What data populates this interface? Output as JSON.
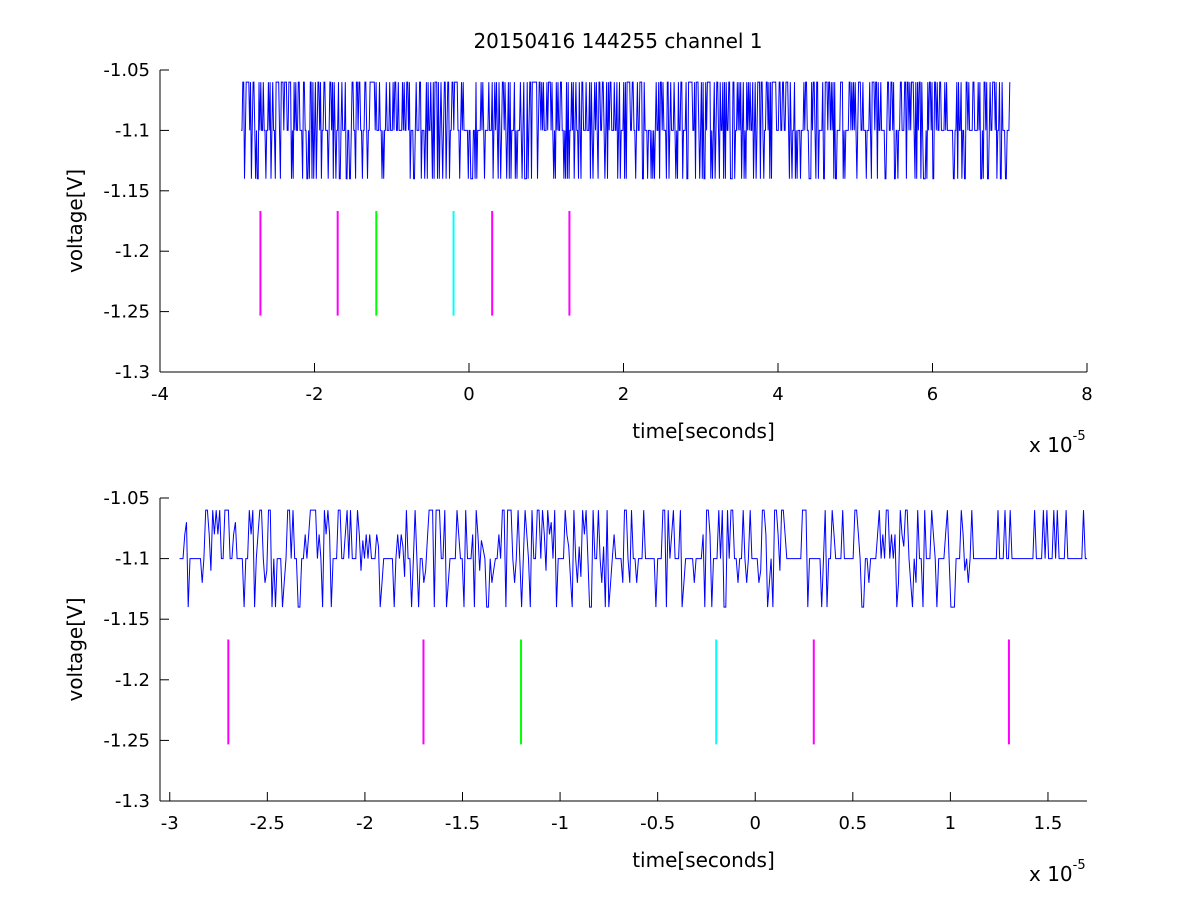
{
  "figure": {
    "title": "20150416 144255 channel 1",
    "background": "#ffffff"
  },
  "chart_data": [
    {
      "type": "line",
      "title": "20150416 144255 channel 1",
      "xlabel": "time[seconds]",
      "ylabel": "voltage[V]",
      "x_exponent_base": "x 10",
      "x_exponent_power": "-5",
      "x_multiplier": 1e-05,
      "xlim": [
        -4,
        8
      ],
      "ylim": [
        -1.3,
        -1.05
      ],
      "xticks": [
        -4,
        -2,
        0,
        2,
        4,
        6,
        8
      ],
      "xtick_labels": [
        "-4",
        "-2",
        "0",
        "2",
        "4",
        "6",
        "8"
      ],
      "yticks": [
        -1.05,
        -1.1,
        -1.15,
        -1.2,
        -1.25,
        -1.3
      ],
      "ytick_labels": [
        "-1.05",
        "-1.1",
        "-1.15",
        "-1.2",
        "-1.25",
        "-1.3"
      ],
      "grid": false,
      "series": [
        {
          "kind": "signal",
          "color": "#0000ff",
          "x_range": [
            -2.95,
            7.0
          ],
          "levels": [
            -1.06,
            -1.1,
            -1.14
          ],
          "baseline": -1.1
        }
      ],
      "markers": [
        {
          "x": -2.7,
          "y": [
            -1.1667,
            -1.2533
          ],
          "color": "#ff00ff"
        },
        {
          "x": -1.7,
          "y": [
            -1.1667,
            -1.2533
          ],
          "color": "#ff00ff"
        },
        {
          "x": -1.2,
          "y": [
            -1.1667,
            -1.2533
          ],
          "color": "#00ff00"
        },
        {
          "x": -0.2,
          "y": [
            -1.1667,
            -1.2533
          ],
          "color": "#00ffff"
        },
        {
          "x": 0.3,
          "y": [
            -1.1667,
            -1.2533
          ],
          "color": "#ff00ff"
        },
        {
          "x": 1.3,
          "y": [
            -1.1667,
            -1.2533
          ],
          "color": "#ff00ff"
        }
      ]
    },
    {
      "type": "line",
      "title": "",
      "xlabel": "time[seconds]",
      "ylabel": "voltage[V]",
      "x_exponent_base": "x 10",
      "x_exponent_power": "-5",
      "x_multiplier": 1e-05,
      "xlim": [
        -3.05,
        1.7
      ],
      "ylim": [
        -1.3,
        -1.05
      ],
      "xticks": [
        -3,
        -2.5,
        -2,
        -1.5,
        -1,
        -0.5,
        0,
        0.5,
        1,
        1.5
      ],
      "xtick_labels": [
        "-3",
        "-2.5",
        "-2",
        "-1.5",
        "-1",
        "-0.5",
        "0",
        "0.5",
        "1",
        "1.5"
      ],
      "yticks": [
        -1.05,
        -1.1,
        -1.15,
        -1.2,
        -1.25,
        -1.3
      ],
      "ytick_labels": [
        "-1.05",
        "-1.1",
        "-1.15",
        "-1.2",
        "-1.25",
        "-1.3"
      ],
      "grid": false,
      "series": [
        {
          "kind": "signal",
          "color": "#0000ff",
          "x_range": [
            -2.95,
            1.7
          ],
          "levels": [
            -1.06,
            -1.1,
            -1.14
          ],
          "baseline": -1.1
        }
      ],
      "markers": [
        {
          "x": -2.7,
          "y": [
            -1.1667,
            -1.2533
          ],
          "color": "#ff00ff"
        },
        {
          "x": -1.7,
          "y": [
            -1.1667,
            -1.2533
          ],
          "color": "#ff00ff"
        },
        {
          "x": -1.2,
          "y": [
            -1.1667,
            -1.2533
          ],
          "color": "#00ff00"
        },
        {
          "x": -0.2,
          "y": [
            -1.1667,
            -1.2533
          ],
          "color": "#00ffff"
        },
        {
          "x": 0.3,
          "y": [
            -1.1667,
            -1.2533
          ],
          "color": "#ff00ff"
        },
        {
          "x": 1.3,
          "y": [
            -1.1667,
            -1.2533
          ],
          "color": "#ff00ff"
        }
      ]
    }
  ]
}
